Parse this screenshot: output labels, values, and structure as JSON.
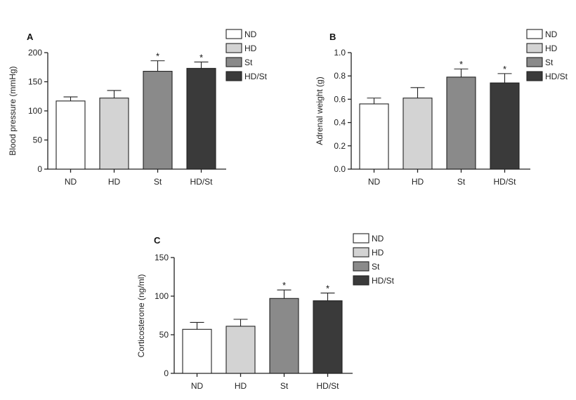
{
  "chart_data": [
    {
      "panel": "A",
      "type": "bar",
      "ylabel": "Blood pressure (mmHg)",
      "xlabel": "",
      "ylim": [
        0,
        200
      ],
      "yticks": [
        "0",
        "50",
        "100",
        "150",
        "200"
      ],
      "yticks_values": [
        0,
        50,
        100,
        150,
        200
      ],
      "categories": [
        "ND",
        "HD",
        "St",
        "HD/St"
      ],
      "values": [
        117,
        122,
        168,
        173
      ],
      "errors": [
        7,
        13,
        18,
        11
      ],
      "significance": [
        "",
        "",
        "*",
        "*"
      ],
      "legend": [
        "ND",
        "HD",
        "St",
        "HD/St"
      ],
      "legend_position": "top-right",
      "grid": false
    },
    {
      "panel": "B",
      "type": "bar",
      "ylabel": "Adrenal weight (g)",
      "xlabel": "",
      "ylim": [
        0,
        1.0
      ],
      "yticks": [
        "0.0",
        "0.2",
        "0.4",
        "0.6",
        "0.8",
        "1.0"
      ],
      "yticks_values": [
        0,
        0.2,
        0.4,
        0.6,
        0.8,
        1.0
      ],
      "categories": [
        "ND",
        "HD",
        "St",
        "HD/St"
      ],
      "values": [
        0.56,
        0.61,
        0.79,
        0.74
      ],
      "errors": [
        0.05,
        0.09,
        0.07,
        0.08
      ],
      "significance": [
        "",
        "",
        "*",
        "*"
      ],
      "legend": [
        "ND",
        "HD",
        "St",
        "HD/St"
      ],
      "legend_position": "top-right",
      "grid": false
    },
    {
      "panel": "C",
      "type": "bar",
      "ylabel": "Corticosterone (ng/ml)",
      "xlabel": "",
      "ylim": [
        0,
        150
      ],
      "yticks": [
        "0",
        "50",
        "100",
        "150"
      ],
      "yticks_values": [
        0,
        50,
        100,
        150
      ],
      "categories": [
        "ND",
        "HD",
        "St",
        "HD/St"
      ],
      "values": [
        57,
        61,
        97,
        94
      ],
      "errors": [
        9,
        9,
        11,
        10
      ],
      "significance": [
        "",
        "",
        "*",
        "*"
      ],
      "legend": [
        "ND",
        "HD",
        "St",
        "HD/St"
      ],
      "legend_position": "top-right",
      "grid": false
    }
  ],
  "colors": {
    "ND": "#ffffff",
    "HD": "#d3d3d3",
    "St": "#8a8a8a",
    "HD/St": "#3a3a3a"
  }
}
